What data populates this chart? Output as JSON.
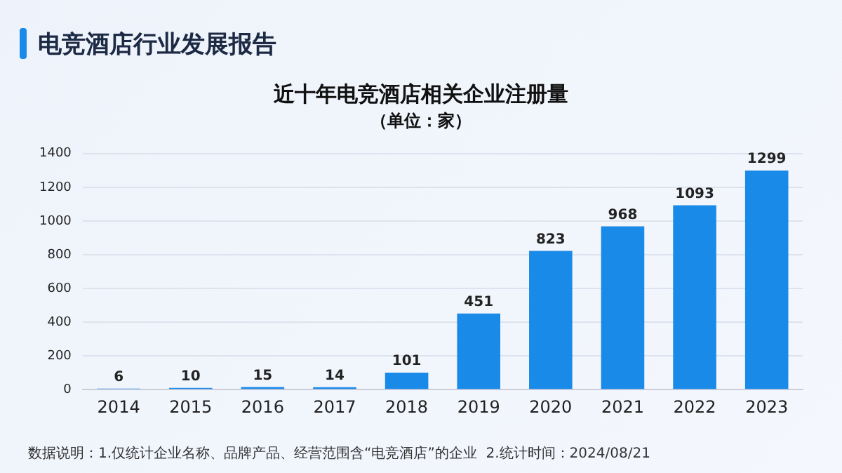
{
  "chart_data": {
    "type": "bar",
    "title": "近十年电竞酒店相关企业注册量",
    "subtitle": "（单位：家）",
    "annotations": [
      "电竞酒店行业发展报告",
      "数据说明：1.仅统计企业名称、品牌产品、经营范围含“电竞酒店”的企业  2.统计时间：2024/08/21"
    ],
    "categories": [
      "2014",
      "2015",
      "2016",
      "2017",
      "2018",
      "2019",
      "2020",
      "2021",
      "2022",
      "2023"
    ],
    "values": [
      6,
      10,
      15,
      14,
      101,
      451,
      823,
      968,
      1093,
      1299
    ],
    "color": "#1a8ae8",
    "ylim": [
      0,
      1400
    ],
    "yticks": [
      0,
      200,
      400,
      600,
      800,
      1000,
      1200,
      1400
    ],
    "grid": "y",
    "data_labels": true,
    "legend": false
  }
}
